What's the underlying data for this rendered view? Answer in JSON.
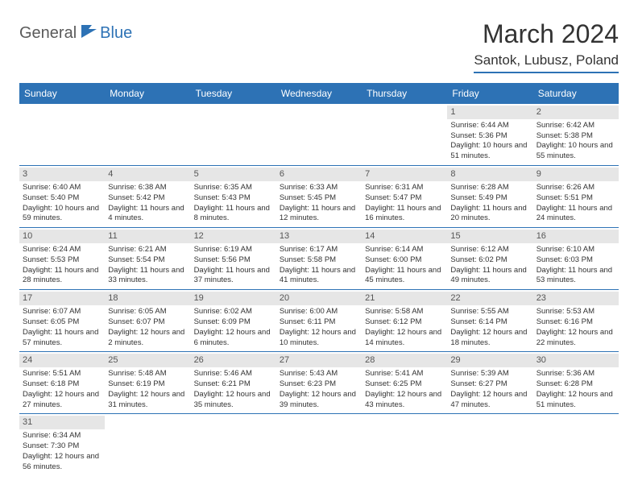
{
  "logo": {
    "text1": "General",
    "text2": "Blue"
  },
  "title": "March 2024",
  "location": "Santok, Lubusz, Poland",
  "colors": {
    "header_bg": "#2d72b5",
    "header_text": "#ffffff",
    "daynum_bg": "#e6e6e6",
    "text": "#333333",
    "divider": "#2d72b5"
  },
  "weekdays": [
    "Sunday",
    "Monday",
    "Tuesday",
    "Wednesday",
    "Thursday",
    "Friday",
    "Saturday"
  ],
  "weeks": [
    [
      null,
      null,
      null,
      null,
      null,
      {
        "n": "1",
        "sr": "Sunrise: 6:44 AM",
        "ss": "Sunset: 5:36 PM",
        "dl": "Daylight: 10 hours and 51 minutes."
      },
      {
        "n": "2",
        "sr": "Sunrise: 6:42 AM",
        "ss": "Sunset: 5:38 PM",
        "dl": "Daylight: 10 hours and 55 minutes."
      }
    ],
    [
      {
        "n": "3",
        "sr": "Sunrise: 6:40 AM",
        "ss": "Sunset: 5:40 PM",
        "dl": "Daylight: 10 hours and 59 minutes."
      },
      {
        "n": "4",
        "sr": "Sunrise: 6:38 AM",
        "ss": "Sunset: 5:42 PM",
        "dl": "Daylight: 11 hours and 4 minutes."
      },
      {
        "n": "5",
        "sr": "Sunrise: 6:35 AM",
        "ss": "Sunset: 5:43 PM",
        "dl": "Daylight: 11 hours and 8 minutes."
      },
      {
        "n": "6",
        "sr": "Sunrise: 6:33 AM",
        "ss": "Sunset: 5:45 PM",
        "dl": "Daylight: 11 hours and 12 minutes."
      },
      {
        "n": "7",
        "sr": "Sunrise: 6:31 AM",
        "ss": "Sunset: 5:47 PM",
        "dl": "Daylight: 11 hours and 16 minutes."
      },
      {
        "n": "8",
        "sr": "Sunrise: 6:28 AM",
        "ss": "Sunset: 5:49 PM",
        "dl": "Daylight: 11 hours and 20 minutes."
      },
      {
        "n": "9",
        "sr": "Sunrise: 6:26 AM",
        "ss": "Sunset: 5:51 PM",
        "dl": "Daylight: 11 hours and 24 minutes."
      }
    ],
    [
      {
        "n": "10",
        "sr": "Sunrise: 6:24 AM",
        "ss": "Sunset: 5:53 PM",
        "dl": "Daylight: 11 hours and 28 minutes."
      },
      {
        "n": "11",
        "sr": "Sunrise: 6:21 AM",
        "ss": "Sunset: 5:54 PM",
        "dl": "Daylight: 11 hours and 33 minutes."
      },
      {
        "n": "12",
        "sr": "Sunrise: 6:19 AM",
        "ss": "Sunset: 5:56 PM",
        "dl": "Daylight: 11 hours and 37 minutes."
      },
      {
        "n": "13",
        "sr": "Sunrise: 6:17 AM",
        "ss": "Sunset: 5:58 PM",
        "dl": "Daylight: 11 hours and 41 minutes."
      },
      {
        "n": "14",
        "sr": "Sunrise: 6:14 AM",
        "ss": "Sunset: 6:00 PM",
        "dl": "Daylight: 11 hours and 45 minutes."
      },
      {
        "n": "15",
        "sr": "Sunrise: 6:12 AM",
        "ss": "Sunset: 6:02 PM",
        "dl": "Daylight: 11 hours and 49 minutes."
      },
      {
        "n": "16",
        "sr": "Sunrise: 6:10 AM",
        "ss": "Sunset: 6:03 PM",
        "dl": "Daylight: 11 hours and 53 minutes."
      }
    ],
    [
      {
        "n": "17",
        "sr": "Sunrise: 6:07 AM",
        "ss": "Sunset: 6:05 PM",
        "dl": "Daylight: 11 hours and 57 minutes."
      },
      {
        "n": "18",
        "sr": "Sunrise: 6:05 AM",
        "ss": "Sunset: 6:07 PM",
        "dl": "Daylight: 12 hours and 2 minutes."
      },
      {
        "n": "19",
        "sr": "Sunrise: 6:02 AM",
        "ss": "Sunset: 6:09 PM",
        "dl": "Daylight: 12 hours and 6 minutes."
      },
      {
        "n": "20",
        "sr": "Sunrise: 6:00 AM",
        "ss": "Sunset: 6:11 PM",
        "dl": "Daylight: 12 hours and 10 minutes."
      },
      {
        "n": "21",
        "sr": "Sunrise: 5:58 AM",
        "ss": "Sunset: 6:12 PM",
        "dl": "Daylight: 12 hours and 14 minutes."
      },
      {
        "n": "22",
        "sr": "Sunrise: 5:55 AM",
        "ss": "Sunset: 6:14 PM",
        "dl": "Daylight: 12 hours and 18 minutes."
      },
      {
        "n": "23",
        "sr": "Sunrise: 5:53 AM",
        "ss": "Sunset: 6:16 PM",
        "dl": "Daylight: 12 hours and 22 minutes."
      }
    ],
    [
      {
        "n": "24",
        "sr": "Sunrise: 5:51 AM",
        "ss": "Sunset: 6:18 PM",
        "dl": "Daylight: 12 hours and 27 minutes."
      },
      {
        "n": "25",
        "sr": "Sunrise: 5:48 AM",
        "ss": "Sunset: 6:19 PM",
        "dl": "Daylight: 12 hours and 31 minutes."
      },
      {
        "n": "26",
        "sr": "Sunrise: 5:46 AM",
        "ss": "Sunset: 6:21 PM",
        "dl": "Daylight: 12 hours and 35 minutes."
      },
      {
        "n": "27",
        "sr": "Sunrise: 5:43 AM",
        "ss": "Sunset: 6:23 PM",
        "dl": "Daylight: 12 hours and 39 minutes."
      },
      {
        "n": "28",
        "sr": "Sunrise: 5:41 AM",
        "ss": "Sunset: 6:25 PM",
        "dl": "Daylight: 12 hours and 43 minutes."
      },
      {
        "n": "29",
        "sr": "Sunrise: 5:39 AM",
        "ss": "Sunset: 6:27 PM",
        "dl": "Daylight: 12 hours and 47 minutes."
      },
      {
        "n": "30",
        "sr": "Sunrise: 5:36 AM",
        "ss": "Sunset: 6:28 PM",
        "dl": "Daylight: 12 hours and 51 minutes."
      }
    ],
    [
      {
        "n": "31",
        "sr": "Sunrise: 6:34 AM",
        "ss": "Sunset: 7:30 PM",
        "dl": "Daylight: 12 hours and 56 minutes."
      },
      null,
      null,
      null,
      null,
      null,
      null
    ]
  ]
}
